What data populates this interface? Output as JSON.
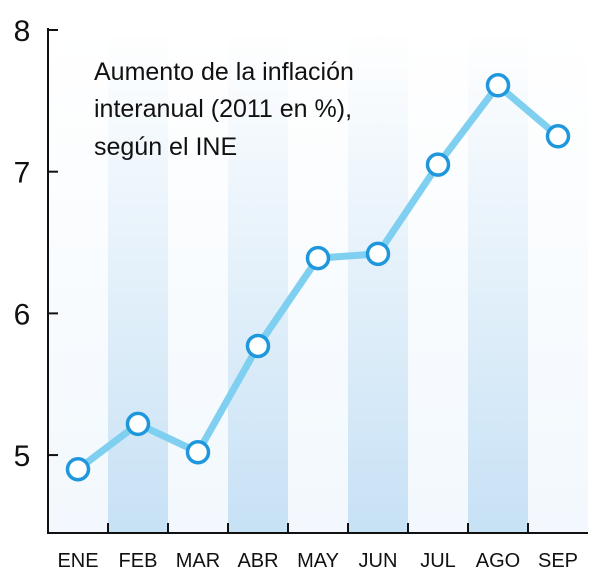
{
  "chart_data": {
    "type": "line",
    "title_lines": [
      "Aumento de la inflación",
      "interanual (2011 en %),",
      "según el INE"
    ],
    "categories": [
      "ENE",
      "FEB",
      "MAR",
      "ABR",
      "MAY",
      "JUN",
      "JUL",
      "AGO",
      "SEP"
    ],
    "values": [
      4.9,
      5.22,
      5.02,
      5.77,
      6.39,
      6.42,
      7.05,
      7.61,
      7.25
    ],
    "y_ticks": [
      5,
      6,
      7,
      8
    ],
    "ylim": [
      4.45,
      8.0
    ],
    "grid": false,
    "colors": {
      "line": "#7fcff0",
      "marker_stroke": "#1e97dc",
      "marker_fill": "#ffffff",
      "band_light": "#f2f8fd",
      "band_dark": "#c7e1f5",
      "axis": "#111111"
    }
  }
}
